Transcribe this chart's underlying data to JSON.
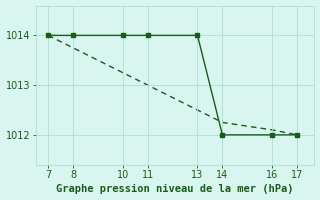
{
  "x_main": [
    7,
    8,
    10,
    11,
    13,
    14,
    16,
    17
  ],
  "y_main": [
    1014,
    1014,
    1014,
    1014,
    1014,
    1012,
    1012,
    1012
  ],
  "x_diag": [
    7,
    8,
    10,
    11,
    13,
    14,
    16,
    17
  ],
  "y_diag": [
    1014,
    1013.75,
    1013.25,
    1013.0,
    1012.5,
    1012.25,
    1012.1,
    1012.0
  ],
  "line_color": "#1a5c1a",
  "bg_color": "#d8f5f0",
  "grid_color": "#b0ddd5",
  "xlabel": "Graphe pression niveau de la mer (hPa)",
  "xlim": [
    6.5,
    17.7
  ],
  "ylim": [
    1011.4,
    1014.6
  ],
  "xticks": [
    7,
    8,
    10,
    11,
    13,
    14,
    16,
    17
  ],
  "yticks": [
    1012,
    1013,
    1014
  ],
  "marker": "s",
  "marker_size": 2.5,
  "line_width": 1.0,
  "xlabel_fontsize": 7.5,
  "tick_fontsize": 7.0
}
